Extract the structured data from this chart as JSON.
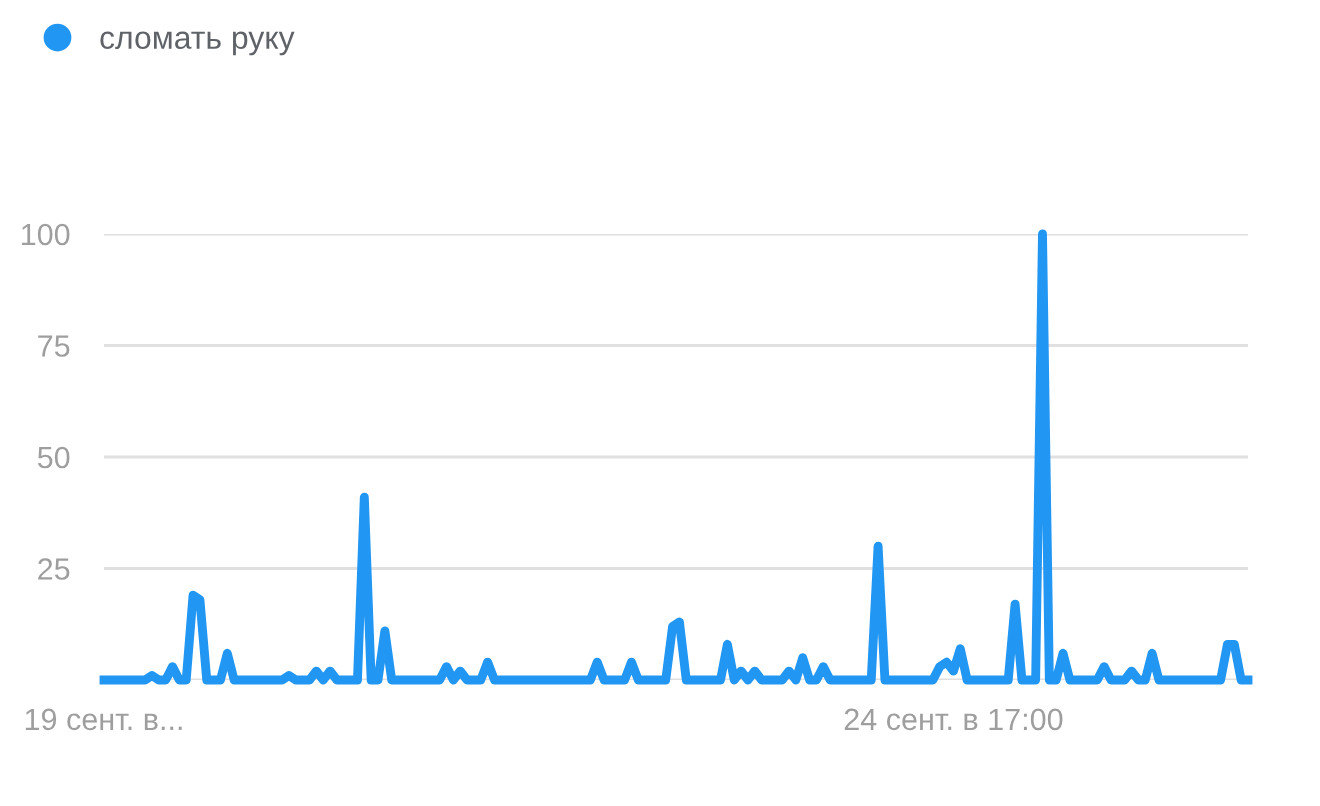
{
  "chart_data": {
    "type": "line",
    "categories": [
      "19 сент. в...",
      null,
      null,
      null,
      null,
      null,
      null,
      null,
      null,
      null,
      null,
      null,
      null,
      null,
      null,
      null,
      null,
      null,
      null,
      null,
      null,
      null,
      null,
      null,
      null,
      null,
      null,
      null,
      null,
      null,
      null,
      null,
      null,
      null,
      null,
      null,
      null,
      null,
      null,
      null,
      null,
      null,
      null,
      null,
      null,
      null,
      null,
      null,
      null,
      null,
      null,
      null,
      null,
      null,
      null,
      null,
      null,
      null,
      null,
      null,
      null,
      null,
      null,
      null,
      null,
      null,
      null,
      null,
      null,
      null,
      null,
      null,
      null,
      null,
      null,
      null,
      null,
      null,
      null,
      null,
      null,
      null,
      null,
      null,
      null,
      null,
      null,
      null,
      null,
      null,
      null,
      null,
      null,
      null,
      null,
      null,
      null,
      null,
      null,
      null,
      null,
      null,
      null,
      null,
      null,
      null,
      null,
      null,
      null,
      null,
      null,
      null,
      null,
      null,
      null,
      null,
      null,
      null,
      null,
      null,
      null,
      null,
      null,
      null,
      "24 сент. в 17:00",
      null,
      null,
      null,
      null,
      null,
      null,
      null,
      null,
      null,
      null,
      null,
      null,
      null,
      null,
      null,
      null,
      null,
      null,
      null,
      null,
      null,
      null,
      null,
      null,
      null,
      null,
      null,
      null,
      null,
      null,
      null,
      null,
      null,
      null,
      null,
      null,
      null,
      null,
      null,
      null,
      null,
      null,
      null
    ],
    "series": [
      {
        "name": "сломать руку",
        "color": "#2196f3",
        "values": [
          0,
          0,
          0,
          0,
          0,
          0,
          0,
          1,
          0,
          0,
          3,
          0,
          0,
          19,
          18,
          0,
          0,
          0,
          6,
          0,
          0,
          0,
          0,
          0,
          0,
          0,
          0,
          1,
          0,
          0,
          0,
          2,
          0,
          2,
          0,
          0,
          0,
          0,
          41,
          0,
          0,
          11,
          0,
          0,
          0,
          0,
          0,
          0,
          0,
          0,
          3,
          0,
          2,
          0,
          0,
          0,
          4,
          0,
          0,
          0,
          0,
          0,
          0,
          0,
          0,
          0,
          0,
          0,
          0,
          0,
          0,
          0,
          4,
          0,
          0,
          0,
          0,
          4,
          0,
          0,
          0,
          0,
          0,
          12,
          13,
          0,
          0,
          0,
          0,
          0,
          0,
          8,
          0,
          2,
          0,
          2,
          0,
          0,
          0,
          0,
          2,
          0,
          5,
          0,
          0,
          3,
          0,
          0,
          0,
          0,
          0,
          0,
          0,
          30,
          0,
          0,
          0,
          0,
          0,
          0,
          0,
          0,
          3,
          4,
          2,
          7,
          0,
          0,
          0,
          0,
          0,
          0,
          0,
          17,
          0,
          0,
          0,
          100,
          0,
          0,
          6,
          0,
          0,
          0,
          0,
          0,
          3,
          0,
          0,
          0,
          2,
          0,
          0,
          6,
          0,
          0,
          0,
          0,
          0,
          0,
          0,
          0,
          0,
          0,
          8,
          8,
          0,
          0
        ]
      }
    ],
    "ylim": [
      0,
      100
    ],
    "yticks": [
      {
        "value": 0,
        "label": null
      },
      25,
      50,
      75,
      100
    ],
    "grid": "y",
    "legend": "top left",
    "marker": "none",
    "line_style": "solid"
  }
}
